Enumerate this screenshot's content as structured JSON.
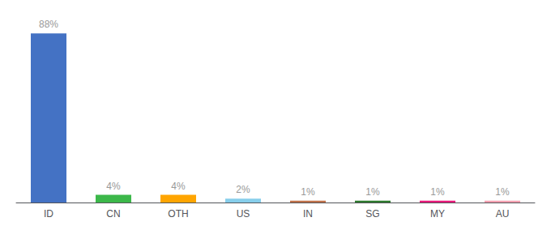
{
  "chart_data": {
    "type": "bar",
    "categories": [
      "ID",
      "CN",
      "OTH",
      "US",
      "IN",
      "SG",
      "MY",
      "AU"
    ],
    "values": [
      88,
      4,
      4,
      2,
      1,
      1,
      1,
      1
    ],
    "value_labels": [
      "88%",
      "4%",
      "4%",
      "2%",
      "1%",
      "1%",
      "1%",
      "1%"
    ],
    "colors": [
      "#4472C4",
      "#3CB84A",
      "#FFA500",
      "#87CEEB",
      "#C0724A",
      "#2D7A2D",
      "#E8197A",
      "#F4A0B0"
    ],
    "ylim": [
      0,
      97
    ],
    "grid": false,
    "data_labels": true,
    "tick_labels": "x"
  }
}
